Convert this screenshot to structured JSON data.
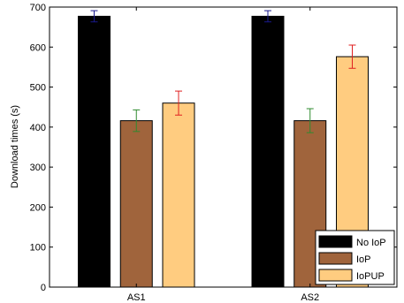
{
  "chart_data": {
    "type": "bar",
    "title": "",
    "xlabel": "",
    "ylabel": "Download times (s)",
    "ylim": [
      0,
      700
    ],
    "yticks": [
      "0",
      "100",
      "200",
      "300",
      "400",
      "500",
      "600",
      "700"
    ],
    "categories": [
      "AS1",
      "AS2"
    ],
    "grid": false,
    "legend_position": "bottom-right",
    "series": [
      {
        "name": "No IoP",
        "values": [
          677,
          677
        ],
        "errors": [
          14,
          14
        ],
        "color": "#000000",
        "error_color": "#1a1a8c"
      },
      {
        "name": "IoP",
        "values": [
          416,
          416
        ],
        "errors": [
          27,
          30
        ],
        "color": "#a0643c",
        "error_color": "#2f8a2f"
      },
      {
        "name": "IoPUP",
        "values": [
          460,
          576
        ],
        "errors": [
          30,
          29
        ],
        "color": "#ffcc80",
        "error_color": "#e02020"
      }
    ]
  }
}
